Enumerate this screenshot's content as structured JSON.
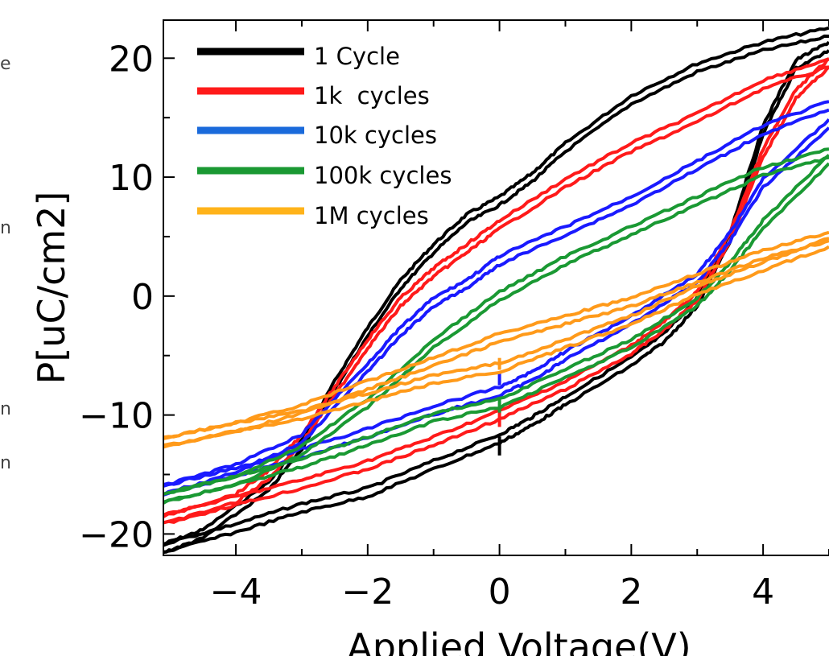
{
  "chart_data": {
    "type": "line",
    "xlabel": "Applied Voltage(V)",
    "ylabel": "P[uC/cm2]",
    "xlim": [
      -5.1,
      5
    ],
    "ylim": [
      -21.8,
      23.2
    ],
    "xticks": [
      -4,
      -2,
      0,
      2,
      4
    ],
    "xtick_labels": [
      "−4",
      "−2",
      "0",
      "2",
      "4"
    ],
    "yticks": [
      20,
      10,
      0,
      -10,
      -20
    ],
    "ytick_labels": [
      "20",
      "10",
      "0",
      "−10",
      "−20"
    ],
    "grid": false,
    "legend_position": "top-left",
    "series": [
      {
        "name": "1 Cycle",
        "color": "#000000",
        "upper": [
          [
            -5.1,
            -21.2
          ],
          [
            -4.5,
            -20
          ],
          [
            -3.5,
            -16
          ],
          [
            -3,
            -12.5
          ],
          [
            -2.5,
            -7.5
          ],
          [
            -2,
            -3
          ],
          [
            -1.5,
            1
          ],
          [
            -1,
            4
          ],
          [
            -0.5,
            6.5
          ],
          [
            0,
            8
          ],
          [
            0.5,
            10
          ],
          [
            1,
            12.5
          ],
          [
            2,
            16.5
          ],
          [
            3,
            19.2
          ],
          [
            4,
            21
          ],
          [
            5,
            22.2
          ]
        ],
        "lower": [
          [
            -5.1,
            -21.2
          ],
          [
            -4,
            -19.5
          ],
          [
            -3,
            -17.8
          ],
          [
            -2,
            -16.5
          ],
          [
            -1,
            -14.2
          ],
          [
            0,
            -12
          ],
          [
            0.5,
            -10.5
          ],
          [
            1,
            -8.8
          ],
          [
            2,
            -5.5
          ],
          [
            2.5,
            -3.5
          ],
          [
            3,
            -0.5
          ],
          [
            3.5,
            5
          ],
          [
            4,
            14
          ],
          [
            4.5,
            19.5
          ],
          [
            5,
            21
          ]
        ],
        "spike": [
          0,
          -13.4,
          -11.8
        ]
      },
      {
        "name": "1k  cycles",
        "color": "#ff1a1a",
        "upper": [
          [
            -5.1,
            -18.8
          ],
          [
            -4,
            -17
          ],
          [
            -3.5,
            -15
          ],
          [
            -3,
            -12
          ],
          [
            -2.5,
            -8
          ],
          [
            -2,
            -4
          ],
          [
            -1.5,
            -0.5
          ],
          [
            -1,
            2
          ],
          [
            -0.5,
            4
          ],
          [
            0,
            6
          ],
          [
            1,
            9.5
          ],
          [
            2,
            12.5
          ],
          [
            3,
            15
          ],
          [
            4,
            17.8
          ],
          [
            5,
            19.6
          ]
        ],
        "lower": [
          [
            -5.1,
            -18.8
          ],
          [
            -4,
            -17.2
          ],
          [
            -3,
            -15.8
          ],
          [
            -2,
            -14.2
          ],
          [
            -1,
            -12.2
          ],
          [
            0,
            -10
          ],
          [
            1,
            -7.5
          ],
          [
            2,
            -4.5
          ],
          [
            2.5,
            -2.5
          ],
          [
            3,
            0
          ],
          [
            3.5,
            5
          ],
          [
            4,
            12
          ],
          [
            4.5,
            17
          ],
          [
            5,
            19.6
          ]
        ],
        "spike": [
          0,
          -11,
          -9.5
        ]
      },
      {
        "name": "10k cycles",
        "color": "#1a1aff",
        "upper": [
          [
            -5.1,
            -16.3
          ],
          [
            -4,
            -14.5
          ],
          [
            -3,
            -12
          ],
          [
            -2,
            -6
          ],
          [
            -1.5,
            -3
          ],
          [
            -1,
            -0.5
          ],
          [
            -0.5,
            1
          ],
          [
            0,
            3
          ],
          [
            1,
            5.5
          ],
          [
            2,
            8
          ],
          [
            3,
            11
          ],
          [
            4,
            14
          ],
          [
            5,
            16
          ]
        ],
        "lower": [
          [
            -5.1,
            -16.3
          ],
          [
            -4,
            -14.8
          ],
          [
            -3,
            -13.2
          ],
          [
            -2,
            -11.5
          ],
          [
            -1,
            -9.6
          ],
          [
            0,
            -8
          ],
          [
            0.5,
            -6.7
          ],
          [
            1,
            -5
          ],
          [
            2,
            -2
          ],
          [
            3,
            1.5
          ],
          [
            3.5,
            5
          ],
          [
            4,
            9.5
          ],
          [
            5,
            14.5
          ]
        ],
        "spike": [
          0,
          -7.5,
          -6.5
        ]
      },
      {
        "name": "100k cycles",
        "color": "#1a9933",
        "upper": [
          [
            -5.1,
            -17
          ],
          [
            -4,
            -15.5
          ],
          [
            -3,
            -13
          ],
          [
            -2,
            -9
          ],
          [
            -1,
            -4
          ],
          [
            0,
            0
          ],
          [
            1,
            3
          ],
          [
            2,
            5.5
          ],
          [
            3,
            8
          ],
          [
            4,
            10.5
          ],
          [
            5,
            12
          ]
        ],
        "lower": [
          [
            -5.1,
            -17
          ],
          [
            -4,
            -15.5
          ],
          [
            -3,
            -14
          ],
          [
            -2,
            -12.2
          ],
          [
            -1,
            -10.2
          ],
          [
            0,
            -9
          ],
          [
            1,
            -6.5
          ],
          [
            2,
            -4
          ],
          [
            3,
            -0.5
          ],
          [
            3.5,
            2.5
          ],
          [
            4,
            6
          ],
          [
            5,
            11.5
          ]
        ],
        "spike": [
          0,
          -9.8,
          -8.5
        ]
      },
      {
        "name": "1M cycles",
        "color": "#ff9a1a",
        "upper": [
          [
            -5.1,
            -12.3
          ],
          [
            -4,
            -11
          ],
          [
            -3,
            -9.5
          ],
          [
            -2,
            -7.5
          ],
          [
            -1,
            -5.5
          ],
          [
            0,
            -3.5
          ],
          [
            1,
            -2
          ],
          [
            2,
            -0.5
          ],
          [
            3,
            1.5
          ],
          [
            4,
            3.5
          ],
          [
            5,
            5
          ]
        ],
        "lower": [
          [
            -5.1,
            -12.3
          ],
          [
            -4,
            -11
          ],
          [
            -3,
            -10
          ],
          [
            -2,
            -8.5
          ],
          [
            -1,
            -7
          ],
          [
            0,
            -6
          ],
          [
            1,
            -4
          ],
          [
            2,
            -2
          ],
          [
            3,
            0.5
          ],
          [
            4,
            2.5
          ],
          [
            5,
            4.5
          ]
        ],
        "spike": [
          0,
          -6.2,
          -5.2
        ]
      }
    ]
  },
  "legend": {
    "items": [
      {
        "label": "1 Cycle",
        "color": "#000000"
      },
      {
        "label": "1k  cycles",
        "color": "#ff1a1a"
      },
      {
        "label": "10k cycles",
        "color": "#1a6adb"
      },
      {
        "label": "100k cycles",
        "color": "#1a9933"
      },
      {
        "label": "1M cycles",
        "color": "#ffb31a"
      }
    ]
  },
  "page_fragments": [
    "e",
    "n",
    "n",
    "n"
  ]
}
